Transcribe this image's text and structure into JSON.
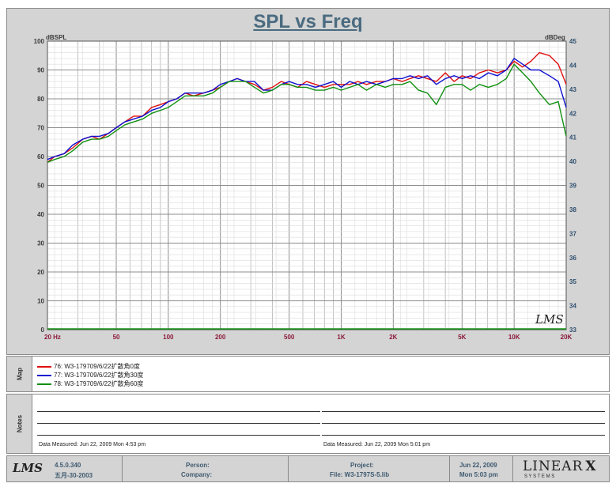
{
  "chart_data": {
    "type": "line",
    "title": "SPL vs Freq",
    "x_scale": "log",
    "xlim": [
      20,
      20000
    ],
    "ylim": [
      0,
      100
    ],
    "y2lim": [
      33,
      45
    ],
    "ylabel": "dBSPL",
    "y2label": "dBDeg",
    "x_ticks": [
      20,
      50,
      100,
      200,
      500,
      1000,
      2000,
      5000,
      10000,
      20000
    ],
    "x_tick_labels": [
      "20 Hz",
      "50",
      "100",
      "200",
      "500",
      "1K",
      "2K",
      "5K",
      "10K",
      "20K"
    ],
    "y_ticks": [
      0,
      10,
      20,
      30,
      40,
      50,
      60,
      70,
      80,
      90,
      100
    ],
    "y2_ticks": [
      33,
      34,
      35,
      36,
      37,
      38,
      39,
      40,
      41,
      42,
      43,
      44,
      45
    ],
    "grid": true,
    "legend_position": "bottom",
    "watermark": "LMS",
    "series": [
      {
        "name": "76: W3-179709/6/22扩散角0度",
        "color": "#e01010",
        "points": [
          [
            20,
            58
          ],
          [
            22,
            60
          ],
          [
            25,
            61
          ],
          [
            28,
            63
          ],
          [
            32,
            66
          ],
          [
            36,
            67
          ],
          [
            40,
            66
          ],
          [
            45,
            68
          ],
          [
            50,
            70
          ],
          [
            56,
            72
          ],
          [
            63,
            74
          ],
          [
            71,
            74
          ],
          [
            80,
            77
          ],
          [
            90,
            78
          ],
          [
            100,
            79
          ],
          [
            112,
            80
          ],
          [
            125,
            82
          ],
          [
            140,
            81
          ],
          [
            160,
            82
          ],
          [
            180,
            83
          ],
          [
            200,
            84
          ],
          [
            225,
            86
          ],
          [
            250,
            87
          ],
          [
            280,
            86
          ],
          [
            315,
            85
          ],
          [
            355,
            83
          ],
          [
            400,
            84
          ],
          [
            450,
            86
          ],
          [
            500,
            85
          ],
          [
            560,
            84
          ],
          [
            630,
            86
          ],
          [
            710,
            85
          ],
          [
            800,
            84
          ],
          [
            900,
            85
          ],
          [
            1000,
            85
          ],
          [
            1120,
            85
          ],
          [
            1250,
            86
          ],
          [
            1400,
            85
          ],
          [
            1600,
            86
          ],
          [
            1800,
            86
          ],
          [
            2000,
            87
          ],
          [
            2250,
            86
          ],
          [
            2500,
            87
          ],
          [
            2800,
            88
          ],
          [
            3150,
            87
          ],
          [
            3550,
            86
          ],
          [
            4000,
            89
          ],
          [
            4500,
            86
          ],
          [
            5000,
            88
          ],
          [
            5600,
            87
          ],
          [
            6300,
            89
          ],
          [
            7100,
            90
          ],
          [
            8000,
            89
          ],
          [
            9000,
            90
          ],
          [
            10000,
            93
          ],
          [
            11200,
            91
          ],
          [
            12500,
            93
          ],
          [
            14000,
            96
          ],
          [
            16000,
            95
          ],
          [
            18000,
            92
          ],
          [
            20000,
            85
          ]
        ]
      },
      {
        "name": "77: W3-179709/6/22扩散角30度",
        "color": "#1010d0",
        "points": [
          [
            20,
            59
          ],
          [
            22,
            60
          ],
          [
            25,
            61
          ],
          [
            28,
            64
          ],
          [
            32,
            66
          ],
          [
            36,
            67
          ],
          [
            40,
            67
          ],
          [
            45,
            68
          ],
          [
            50,
            70
          ],
          [
            56,
            72
          ],
          [
            63,
            73
          ],
          [
            71,
            74
          ],
          [
            80,
            76
          ],
          [
            90,
            77
          ],
          [
            100,
            79
          ],
          [
            112,
            80
          ],
          [
            125,
            82
          ],
          [
            140,
            82
          ],
          [
            160,
            82
          ],
          [
            180,
            83
          ],
          [
            200,
            85
          ],
          [
            225,
            86
          ],
          [
            250,
            87
          ],
          [
            280,
            86
          ],
          [
            315,
            86
          ],
          [
            355,
            83
          ],
          [
            400,
            83
          ],
          [
            450,
            85
          ],
          [
            500,
            86
          ],
          [
            560,
            85
          ],
          [
            630,
            85
          ],
          [
            710,
            84
          ],
          [
            800,
            85
          ],
          [
            900,
            86
          ],
          [
            1000,
            84
          ],
          [
            1120,
            86
          ],
          [
            1250,
            85
          ],
          [
            1400,
            86
          ],
          [
            1600,
            85
          ],
          [
            1800,
            86
          ],
          [
            2000,
            87
          ],
          [
            2250,
            87
          ],
          [
            2500,
            88
          ],
          [
            2800,
            87
          ],
          [
            3150,
            88
          ],
          [
            3550,
            85
          ],
          [
            4000,
            87
          ],
          [
            4500,
            88
          ],
          [
            5000,
            87
          ],
          [
            5600,
            88
          ],
          [
            6300,
            87
          ],
          [
            7100,
            89
          ],
          [
            8000,
            88
          ],
          [
            9000,
            90
          ],
          [
            10000,
            94
          ],
          [
            11200,
            92
          ],
          [
            12500,
            90
          ],
          [
            14000,
            90
          ],
          [
            16000,
            88
          ],
          [
            18000,
            86
          ],
          [
            20000,
            77
          ]
        ]
      },
      {
        "name": "78: W3-179709/6/22扩散角60度",
        "color": "#109010",
        "points": [
          [
            20,
            58
          ],
          [
            22,
            59
          ],
          [
            25,
            60
          ],
          [
            28,
            62
          ],
          [
            32,
            65
          ],
          [
            36,
            66
          ],
          [
            40,
            66
          ],
          [
            45,
            67
          ],
          [
            50,
            69
          ],
          [
            56,
            71
          ],
          [
            63,
            72
          ],
          [
            71,
            73
          ],
          [
            80,
            75
          ],
          [
            90,
            76
          ],
          [
            100,
            77
          ],
          [
            112,
            79
          ],
          [
            125,
            81
          ],
          [
            140,
            81
          ],
          [
            160,
            81
          ],
          [
            180,
            82
          ],
          [
            200,
            84
          ],
          [
            225,
            86
          ],
          [
            250,
            86
          ],
          [
            280,
            86
          ],
          [
            315,
            84
          ],
          [
            355,
            82
          ],
          [
            400,
            83
          ],
          [
            450,
            85
          ],
          [
            500,
            85
          ],
          [
            560,
            84
          ],
          [
            630,
            84
          ],
          [
            710,
            83
          ],
          [
            800,
            83
          ],
          [
            900,
            84
          ],
          [
            1000,
            83
          ],
          [
            1120,
            84
          ],
          [
            1250,
            85
          ],
          [
            1400,
            83
          ],
          [
            1600,
            85
          ],
          [
            1800,
            84
          ],
          [
            2000,
            85
          ],
          [
            2250,
            85
          ],
          [
            2500,
            86
          ],
          [
            2800,
            83
          ],
          [
            3150,
            82
          ],
          [
            3550,
            78
          ],
          [
            4000,
            84
          ],
          [
            4500,
            85
          ],
          [
            5000,
            85
          ],
          [
            5600,
            83
          ],
          [
            6300,
            85
          ],
          [
            7100,
            84
          ],
          [
            8000,
            85
          ],
          [
            9000,
            87
          ],
          [
            10000,
            92
          ],
          [
            11200,
            89
          ],
          [
            12500,
            86
          ],
          [
            14000,
            82
          ],
          [
            16000,
            78
          ],
          [
            18000,
            79
          ],
          [
            20000,
            67
          ]
        ]
      }
    ]
  },
  "panels": {
    "map_label": "Map",
    "notes_label": "Notes"
  },
  "notes": {
    "left_measured": "Data Measured: Jun 22, 2009  Mon  4:53 pm",
    "right_measured": "Data Measured: Jun 22, 2009  Mon  5:01 pm"
  },
  "footer": {
    "version": "4.5.0.340",
    "version_date": "五月-30-2003",
    "person_label": "Person:",
    "company_label": "Company:",
    "project_label": "Project:",
    "file_label": "File: W3-1797S-5.lib",
    "date": "Jun 22, 2009",
    "time": "Mon  5:03 pm",
    "brand": "LINEAR",
    "brand_mark": "X",
    "brand_sub": "S Y S T E M S",
    "lms_logo": "LMS"
  }
}
